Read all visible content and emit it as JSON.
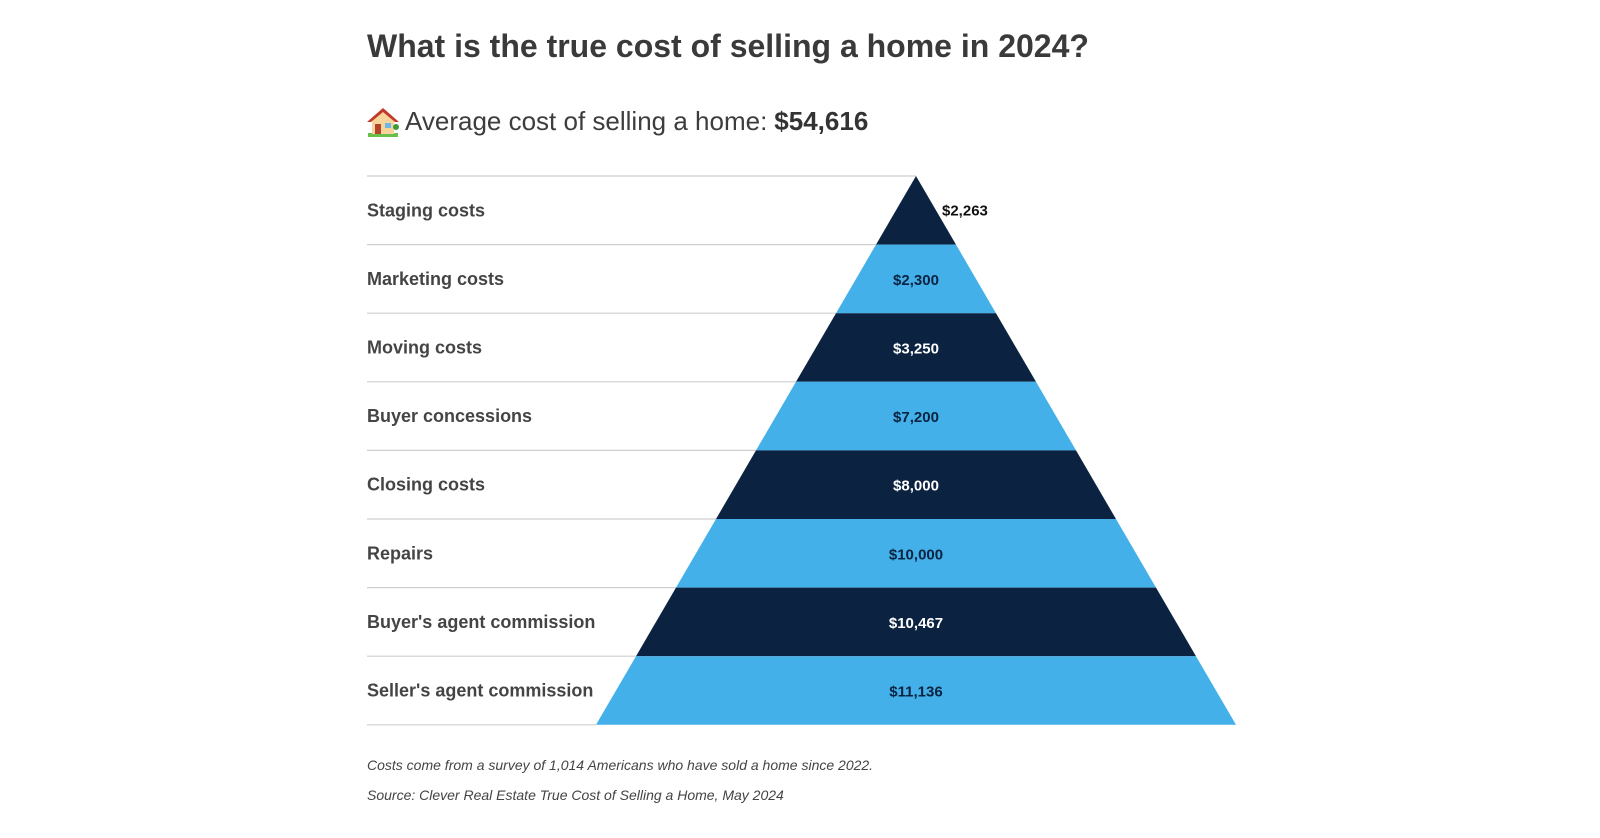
{
  "title": "What is the true cost of selling a home in 2024?",
  "subtitle": {
    "icon": "house-icon",
    "label": "Average cost of selling a home:",
    "total": "$54,616"
  },
  "chart_data": {
    "type": "bar",
    "categories": [
      "Staging costs",
      "Marketing costs",
      "Moving costs",
      "Buyer concessions",
      "Closing costs",
      "Repairs",
      "Buyer's agent commission",
      "Seller's agent commission"
    ],
    "values": [
      2263,
      2300,
      3250,
      7200,
      8000,
      10000,
      10467,
      11136
    ],
    "value_labels": [
      "$2,263",
      "$2,300",
      "$3,250",
      "$7,200",
      "$8,000",
      "$10,000",
      "$10,467",
      "$11,136"
    ],
    "colors": [
      "#0b2340",
      "#43b0ea"
    ],
    "grid": true
  },
  "notes": [
    "Costs come from a survey of 1,014 Americans who have sold a home since 2022.",
    "Source: Clever Real Estate True Cost of Selling a Home, May 2024"
  ]
}
